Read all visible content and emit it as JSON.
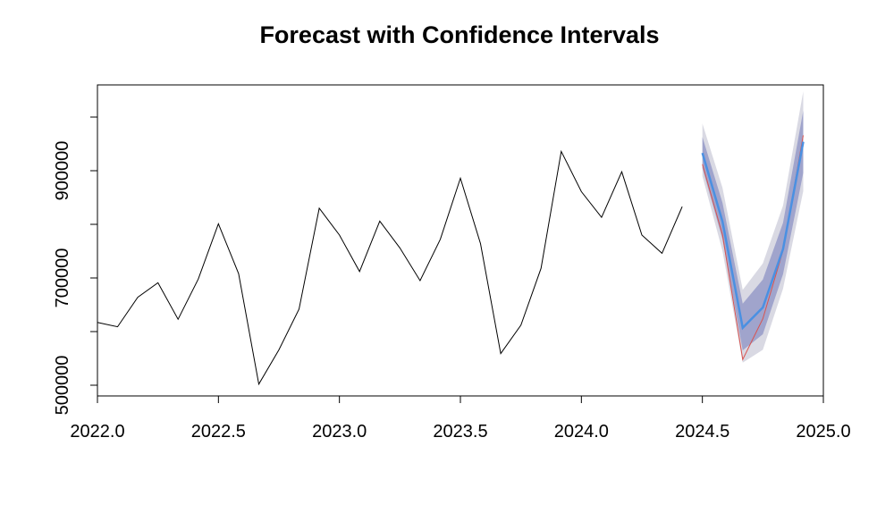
{
  "chart_data": {
    "type": "line",
    "title": "Forecast with Confidence Intervals",
    "xlabel": "",
    "ylabel": "",
    "xlim": [
      2022.0,
      2025.0
    ],
    "ylim": [
      480000,
      1060000
    ],
    "x_ticks": [
      2022.0,
      2022.5,
      2023.0,
      2023.5,
      2024.0,
      2024.5,
      2025.0
    ],
    "x_tick_labels": [
      "2022.0",
      "2022.5",
      "2023.0",
      "2023.5",
      "2024.0",
      "2024.5",
      "2025.0"
    ],
    "y_ticks": [
      500000,
      600000,
      700000,
      800000,
      900000,
      1000000
    ],
    "y_tick_labels": [
      "500000",
      "",
      "700000",
      "",
      "900000",
      ""
    ],
    "grid": false,
    "colors": {
      "history": "#000000",
      "forecast": "#4a90e2",
      "actual": "#d9534f",
      "band_inner": "#a0a4cc",
      "band_outer": "#d9d9e3"
    },
    "series": [
      {
        "role": "history",
        "x": [
          2022.0,
          2022.0833,
          2022.1667,
          2022.25,
          2022.3333,
          2022.4167,
          2022.5,
          2022.5833,
          2022.6667,
          2022.75,
          2022.8333,
          2022.9167,
          2023.0,
          2023.0833,
          2023.1667,
          2023.25,
          2023.3333,
          2023.4167,
          2023.5,
          2023.5833,
          2023.6667,
          2023.75,
          2023.8333,
          2023.9167,
          2024.0,
          2024.0833,
          2024.1667,
          2024.25,
          2024.3333,
          2024.4167
        ],
        "y": [
          617000,
          609000,
          664000,
          691000,
          623000,
          698000,
          801000,
          708000,
          502000,
          566000,
          642000,
          830000,
          780000,
          712000,
          806000,
          756000,
          695000,
          772000,
          886000,
          764000,
          559000,
          612000,
          718000,
          936000,
          861000,
          813000,
          898000,
          780000,
          746000,
          833000
        ]
      },
      {
        "role": "actual",
        "x": [
          2024.5,
          2024.5833,
          2024.6667,
          2024.75,
          2024.8333,
          2024.9167
        ],
        "y": [
          912000,
          780000,
          548000,
          624000,
          751000,
          966000
        ]
      },
      {
        "role": "forecast",
        "x": [
          2024.5,
          2024.5833,
          2024.6667,
          2024.75,
          2024.8333,
          2024.9167
        ],
        "y": [
          933000,
          805000,
          607000,
          645000,
          754000,
          954000
        ],
        "lower80": [
          905000,
          772000,
          565000,
          595000,
          707000,
          896000
        ],
        "upper80": [
          963000,
          840000,
          652000,
          697000,
          803000,
          1012000
        ],
        "lower95": [
          890000,
          750000,
          542000,
          566000,
          680000,
          862000
        ],
        "upper95": [
          988000,
          868000,
          678000,
          727000,
          835000,
          1048000
        ]
      }
    ]
  }
}
